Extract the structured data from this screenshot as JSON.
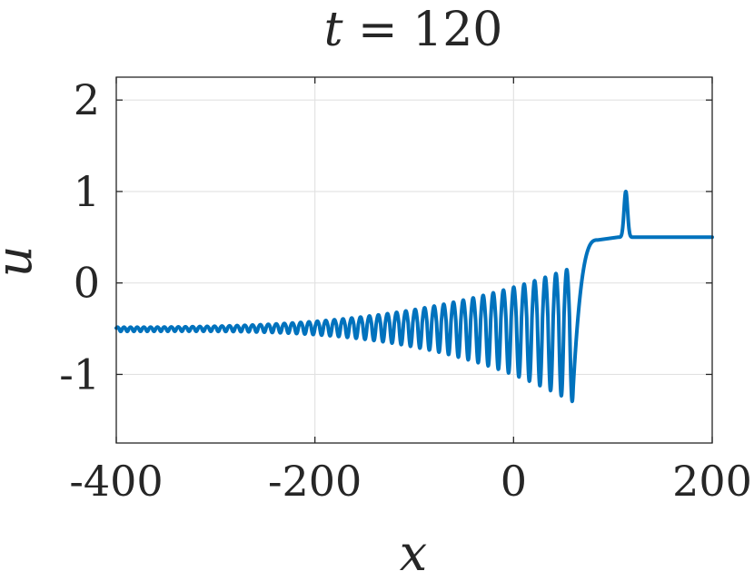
{
  "chart_data": {
    "type": "line",
    "title": "t = 120",
    "title_parts": {
      "var": "t",
      "rest": " = 120"
    },
    "xlabel": "x",
    "ylabel": "u",
    "xlim": [
      -400,
      200
    ],
    "ylim": [
      -1.75,
      2.25
    ],
    "xticks": [
      -400,
      -200,
      0,
      200
    ],
    "yticks": [
      -1,
      0,
      1,
      2
    ],
    "xtick_labels": [
      "-400",
      "-200",
      "0",
      "200"
    ],
    "ytick_labels": [
      "-1",
      "0",
      "1",
      "2"
    ],
    "grid": true,
    "series": [
      {
        "color": "#0072bd",
        "background_left": -0.5,
        "background_right": 0.5,
        "oscillatory_tail": {
          "x_start": -400,
          "x_end": 60,
          "wavelength_left": 6.5,
          "wavelength_right": 11,
          "amplitude_left": 0.03,
          "amplitude_right": 0.95,
          "trough_min_y": -1.4,
          "trough_min_x": 59
        },
        "transition": {
          "x_start": 60,
          "x_end": 85,
          "y_end": 0.47
        },
        "soliton_peak": {
          "x": 113,
          "y": 1.0,
          "width": 2.5
        }
      }
    ]
  }
}
